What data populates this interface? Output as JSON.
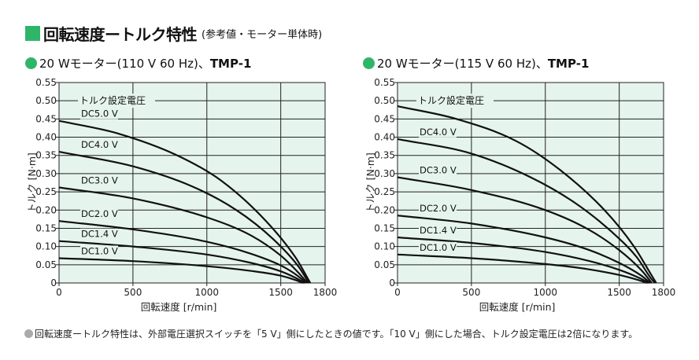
{
  "header": {
    "title": "回転速度ートルク特性",
    "note": "(参考値・モーター単体時)"
  },
  "footer": {
    "note": "回転速度ートルク特性は、外部電圧選択スイッチを「5 V」側にしたときの値です。「10 V」側にした場合、トルク設定電圧は2倍になります。"
  },
  "chart_data": [
    {
      "type": "line",
      "heading": "20 Wモーター(110 V 60 Hz)、",
      "model": "TMP-1",
      "xlabel": "回転速度 [r/min]",
      "ylabel": "トルク [N·m]",
      "xlim": [
        0,
        1800
      ],
      "ylim": [
        0,
        0.55
      ],
      "x_ticks": [
        "0",
        "500",
        "1000",
        "1500",
        "1800"
      ],
      "y_ticks": [
        "0",
        "0.05",
        "0.10",
        "0.15",
        "0.20",
        "0.25",
        "0.30",
        "0.35",
        "0.40",
        "0.45",
        "0.50",
        "0.55"
      ],
      "grid": true,
      "annotation": "トルク設定電圧",
      "series": [
        {
          "name": "DC5.0 V",
          "label_y": 0.445,
          "points": [
            [
              0,
              0.445
            ],
            [
              400,
              0.41
            ],
            [
              800,
              0.35
            ],
            [
              1100,
              0.28
            ],
            [
              1400,
              0.17
            ],
            [
              1600,
              0.07
            ],
            [
              1700,
              0
            ]
          ]
        },
        {
          "name": "DC4.0 V",
          "label_y": 0.36,
          "points": [
            [
              0,
              0.36
            ],
            [
              500,
              0.32
            ],
            [
              900,
              0.265
            ],
            [
              1200,
              0.2
            ],
            [
              1450,
              0.12
            ],
            [
              1620,
              0.045
            ],
            [
              1690,
              0
            ]
          ]
        },
        {
          "name": "DC3.0 V",
          "label_y": 0.262,
          "points": [
            [
              0,
              0.262
            ],
            [
              500,
              0.232
            ],
            [
              1000,
              0.18
            ],
            [
              1300,
              0.13
            ],
            [
              1500,
              0.075
            ],
            [
              1620,
              0.028
            ],
            [
              1680,
              0
            ]
          ]
        },
        {
          "name": "DC2.0 V",
          "label_y": 0.17,
          "points": [
            [
              0,
              0.17
            ],
            [
              500,
              0.147
            ],
            [
              1000,
              0.113
            ],
            [
              1300,
              0.08
            ],
            [
              1500,
              0.048
            ],
            [
              1620,
              0.018
            ],
            [
              1670,
              0
            ]
          ]
        },
        {
          "name": "DC1.4 V",
          "label_y": 0.115,
          "points": [
            [
              0,
              0.115
            ],
            [
              500,
              0.1
            ],
            [
              1000,
              0.078
            ],
            [
              1300,
              0.055
            ],
            [
              1500,
              0.032
            ],
            [
              1610,
              0.012
            ],
            [
              1660,
              0
            ]
          ]
        },
        {
          "name": "DC1.0 V",
          "label_y": 0.068,
          "points": [
            [
              0,
              0.068
            ],
            [
              500,
              0.06
            ],
            [
              1000,
              0.046
            ],
            [
              1300,
              0.033
            ],
            [
              1500,
              0.02
            ],
            [
              1600,
              0.008
            ],
            [
              1650,
              0
            ]
          ]
        }
      ]
    },
    {
      "type": "line",
      "heading": "20 Wモーター(115 V 60 Hz)、",
      "model": "TMP-1",
      "xlabel": "回転速度 [r/min]",
      "ylabel": "トルク [N·m]",
      "xlim": [
        0,
        1800
      ],
      "ylim": [
        0,
        0.55
      ],
      "x_ticks": [
        "0",
        "500",
        "1000",
        "1500",
        "1800"
      ],
      "y_ticks": [
        "0",
        "0.05",
        "0.10",
        "0.15",
        "0.20",
        "0.25",
        "0.30",
        "0.35",
        "0.40",
        "0.45",
        "0.50",
        "0.55"
      ],
      "grid": true,
      "annotation": "トルク設定電圧",
      "series": [
        {
          "name": "DC5.0 V",
          "label_y": 0.485,
          "points": [
            [
              0,
              0.485
            ],
            [
              400,
              0.45
            ],
            [
              800,
              0.39
            ],
            [
              1100,
              0.31
            ],
            [
              1400,
              0.2
            ],
            [
              1600,
              0.1
            ],
            [
              1720,
              0.02
            ],
            [
              1750,
              0
            ]
          ]
        },
        {
          "name": "DC4.0 V",
          "label_y": 0.395,
          "points": [
            [
              0,
              0.395
            ],
            [
              500,
              0.355
            ],
            [
              900,
              0.29
            ],
            [
              1200,
              0.22
            ],
            [
              1450,
              0.14
            ],
            [
              1620,
              0.07
            ],
            [
              1710,
              0.015
            ],
            [
              1740,
              0
            ]
          ]
        },
        {
          "name": "DC3.0 V",
          "label_y": 0.29,
          "points": [
            [
              0,
              0.29
            ],
            [
              500,
              0.255
            ],
            [
              1000,
              0.2
            ],
            [
              1300,
              0.145
            ],
            [
              1500,
              0.09
            ],
            [
              1650,
              0.035
            ],
            [
              1720,
              0
            ]
          ]
        },
        {
          "name": "DC2.0 V",
          "label_y": 0.185,
          "points": [
            [
              0,
              0.185
            ],
            [
              500,
              0.163
            ],
            [
              1000,
              0.125
            ],
            [
              1300,
              0.09
            ],
            [
              1500,
              0.055
            ],
            [
              1650,
              0.02
            ],
            [
              1710,
              0
            ]
          ]
        },
        {
          "name": "DC1.4 V",
          "label_y": 0.125,
          "points": [
            [
              0,
              0.125
            ],
            [
              500,
              0.11
            ],
            [
              1000,
              0.085
            ],
            [
              1300,
              0.06
            ],
            [
              1500,
              0.036
            ],
            [
              1640,
              0.013
            ],
            [
              1700,
              0
            ]
          ]
        },
        {
          "name": "DC1.0 V",
          "label_y": 0.078,
          "points": [
            [
              0,
              0.078
            ],
            [
              500,
              0.068
            ],
            [
              1000,
              0.052
            ],
            [
              1300,
              0.037
            ],
            [
              1500,
              0.022
            ],
            [
              1630,
              0.008
            ],
            [
              1690,
              0
            ]
          ]
        }
      ]
    }
  ]
}
